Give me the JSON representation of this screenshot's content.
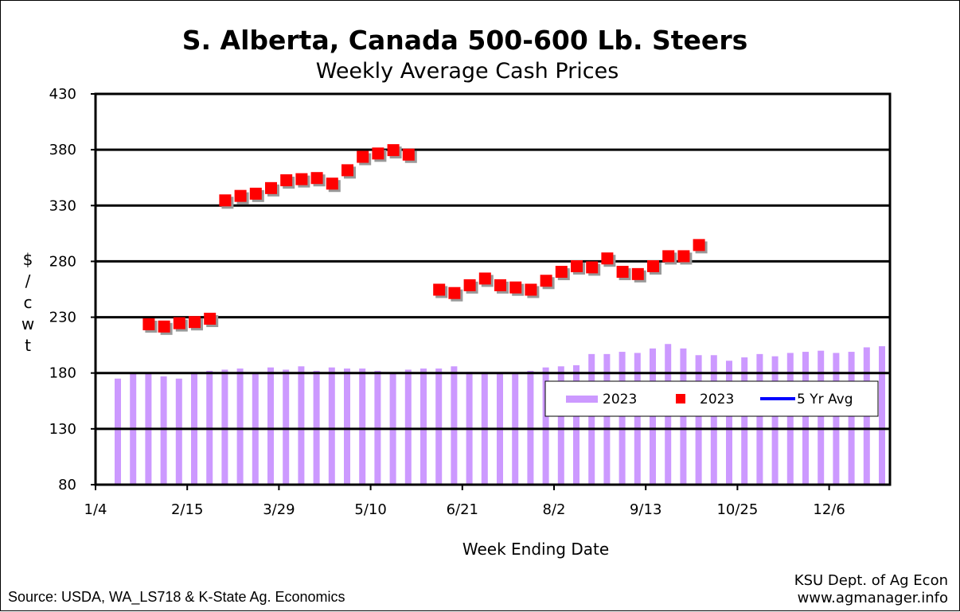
{
  "chart_data": {
    "type": "bar",
    "title": "S. Alberta, Canada 500-600 Lb. Steers",
    "subtitle": "Weekly Average Cash Prices",
    "xlabel": "Week Ending Date",
    "ylabel": "$/cwt",
    "ylim": [
      80,
      430
    ],
    "yticks": [
      80,
      130,
      180,
      230,
      280,
      330,
      380,
      430
    ],
    "xticks": [
      "1/4",
      "2/15",
      "3/29",
      "5/10",
      "6/21",
      "8/2",
      "9/13",
      "10/25",
      "12/6"
    ],
    "grid": "horizontal",
    "legend_position": "lower-right",
    "colors": {
      "bars": "#CC99FF",
      "markers": "#FF0000",
      "avg_line": "#0000FF"
    },
    "series": [
      {
        "name": "2023",
        "kind": "bar",
        "values": [
          175,
          180,
          180,
          177,
          175,
          181,
          182,
          183,
          184,
          180,
          185,
          183,
          186,
          182,
          185,
          184,
          184,
          182,
          180,
          183,
          184,
          184,
          186,
          181,
          181,
          180,
          179,
          182,
          185,
          186,
          187,
          197,
          197,
          199,
          198,
          202,
          206,
          202,
          196,
          196,
          191,
          194,
          197,
          195,
          198,
          199,
          200,
          198,
          199,
          203,
          204
        ]
      },
      {
        "name": "2023",
        "kind": "marker",
        "points": [
          {
            "week": 3,
            "value": 224
          },
          {
            "week": 4,
            "value": 222
          },
          {
            "week": 5,
            "value": 225
          },
          {
            "week": 6,
            "value": 226
          },
          {
            "week": 7,
            "value": 229
          },
          {
            "week": 8,
            "value": 335
          },
          {
            "week": 9,
            "value": 339
          },
          {
            "week": 10,
            "value": 341
          },
          {
            "week": 11,
            "value": 346
          },
          {
            "week": 12,
            "value": 353
          },
          {
            "week": 13,
            "value": 354
          },
          {
            "week": 14,
            "value": 355
          },
          {
            "week": 15,
            "value": 350
          },
          {
            "week": 16,
            "value": 362
          },
          {
            "week": 17,
            "value": 374
          },
          {
            "week": 18,
            "value": 377
          },
          {
            "week": 19,
            "value": 380
          },
          {
            "week": 20,
            "value": 376
          },
          {
            "week": 22,
            "value": 255
          },
          {
            "week": 23,
            "value": 252
          },
          {
            "week": 24,
            "value": 259
          },
          {
            "week": 25,
            "value": 265
          },
          {
            "week": 26,
            "value": 259
          },
          {
            "week": 27,
            "value": 257
          },
          {
            "week": 28,
            "value": 255
          },
          {
            "week": 29,
            "value": 263
          },
          {
            "week": 30,
            "value": 271
          },
          {
            "week": 31,
            "value": 276
          },
          {
            "week": 32,
            "value": 275
          },
          {
            "week": 33,
            "value": 283
          },
          {
            "week": 34,
            "value": 271
          },
          {
            "week": 35,
            "value": 269
          },
          {
            "week": 36,
            "value": 276
          },
          {
            "week": 37,
            "value": 285
          },
          {
            "week": 38,
            "value": 285
          },
          {
            "week": 39,
            "value": 295
          }
        ]
      },
      {
        "name": "5 Yr Avg",
        "kind": "line",
        "values": []
      }
    ],
    "legend": [
      "2023",
      "2023",
      "5 Yr Avg"
    ]
  },
  "footer": {
    "source": "Source:  USDA, WA_LS718 & K-State Ag. Economics",
    "credit_line1": "KSU Dept. of Ag Econ",
    "credit_line2": "www.agmanager.info"
  }
}
